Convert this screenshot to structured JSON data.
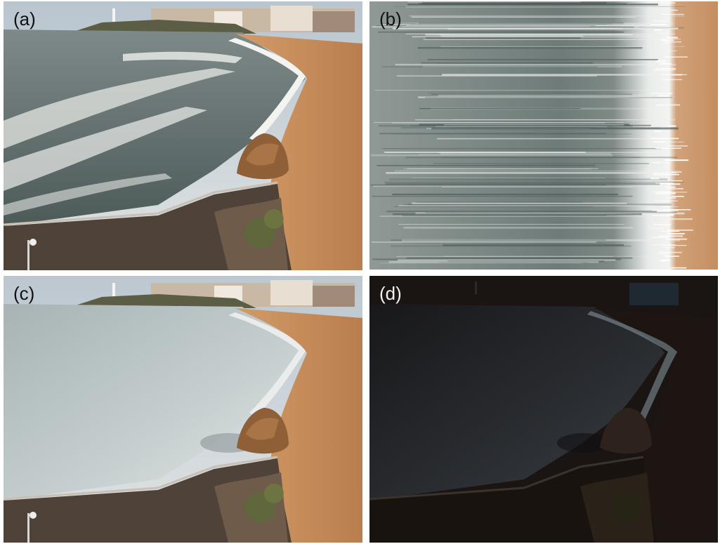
{
  "panels": [
    {
      "id": "a",
      "label": "(a)",
      "label_color": "#111111",
      "content": "beach-photo-snapshot"
    },
    {
      "id": "b",
      "label": "(b)",
      "label_color": "#111111",
      "content": "temporal-stack-streaks"
    },
    {
      "id": "c",
      "label": "(c)",
      "label_color": "#111111",
      "content": "beach-photo-long-exposure"
    },
    {
      "id": "d",
      "label": "(d)",
      "label_color": "#f2f2f2",
      "content": "beach-photo-dark-background"
    }
  ],
  "colors": {
    "sand": "#c98f5e",
    "sea": "#55605f",
    "foam": "#e9ecea",
    "sky": "#cfd6dc",
    "rock": "#8a5a34",
    "promenade": "#4b3f38",
    "dark": "#1a1310"
  }
}
